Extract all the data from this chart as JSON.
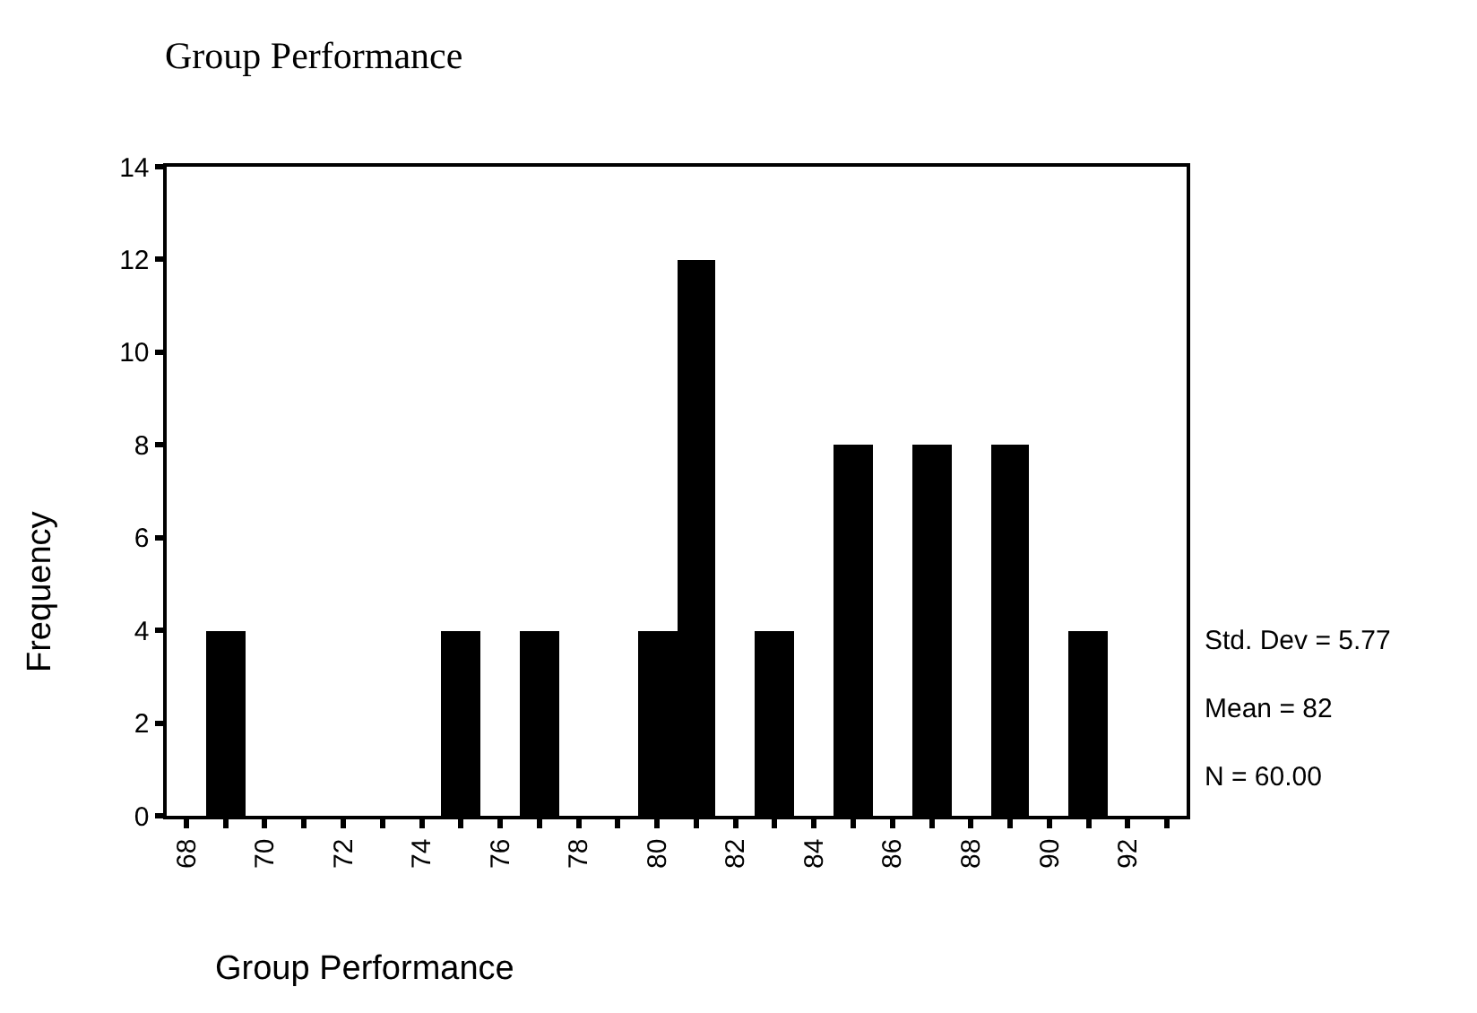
{
  "chart_data": {
    "type": "histogram",
    "title": "Group Performance",
    "xlabel": "Group Performance",
    "ylabel": "Frequency",
    "bins": [
      68.5,
      69.5,
      70.5,
      71.5,
      72.5,
      73.5,
      74.5,
      75.5,
      76.5,
      77.5,
      78.5,
      79.5,
      80.5,
      81.5,
      82.5,
      83.5,
      84.5,
      85.5,
      86.5,
      87.5,
      88.5,
      89.5,
      90.5,
      91.5
    ],
    "values": [
      4,
      0,
      0,
      0,
      0,
      0,
      4,
      0,
      4,
      0,
      0,
      4,
      12,
      0,
      4,
      0,
      8,
      0,
      8,
      0,
      8,
      0,
      4
    ],
    "color": "#000000",
    "xlim": [
      67.5,
      93.5
    ],
    "xticks": [
      68,
      {
        "value": 69,
        "label": null
      },
      70,
      {
        "value": 71,
        "label": null
      },
      72,
      {
        "value": 73,
        "label": null
      },
      74,
      {
        "value": 75,
        "label": null
      },
      76,
      {
        "value": 77,
        "label": null
      },
      78,
      {
        "value": 79,
        "label": null
      },
      80,
      {
        "value": 81,
        "label": null
      },
      82,
      {
        "value": 83,
        "label": null
      },
      84,
      {
        "value": 85,
        "label": null
      },
      86,
      {
        "value": 87,
        "label": null
      },
      88,
      {
        "value": 89,
        "label": null
      },
      90,
      {
        "value": 91,
        "label": null
      },
      92,
      {
        "value": 93,
        "label": null
      }
    ],
    "ylim": [
      0,
      14
    ],
    "yticks": [
      0,
      2,
      4,
      6,
      8,
      10,
      12,
      14
    ],
    "annotations": [
      "Std. Dev = 5.77",
      "Mean = 82",
      "N = 60.00"
    ]
  }
}
